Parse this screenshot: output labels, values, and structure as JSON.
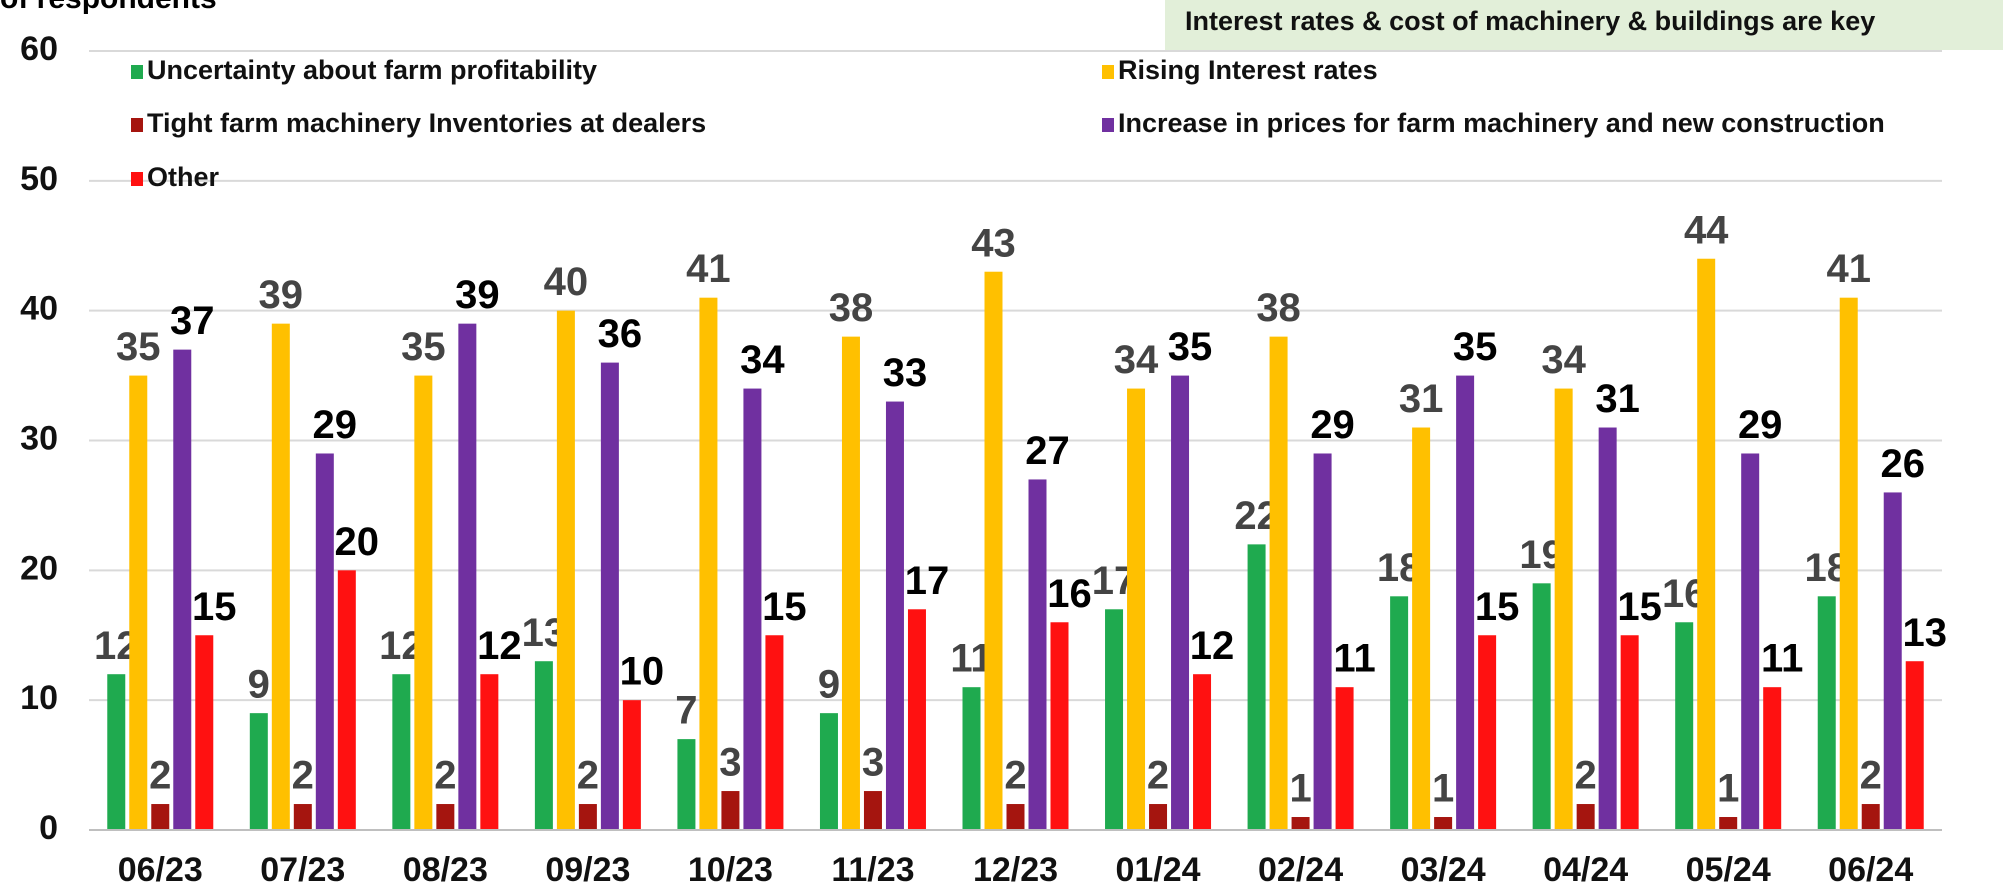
{
  "chart_data": {
    "type": "bar",
    "y_label": "of respondents",
    "annotation": "Interest rates & cost of machinery & buildings are  key",
    "categories": [
      "06/23",
      "07/23",
      "08/23",
      "09/23",
      "10/23",
      "11/23",
      "12/23",
      "01/24",
      "02/24",
      "03/24",
      "04/24",
      "05/24",
      "06/24"
    ],
    "series": [
      {
        "name": "Uncertainty about farm profitability",
        "color": "#1faa4f",
        "label_color": "#444444",
        "values": [
          12,
          9,
          12,
          13,
          7,
          9,
          11,
          17,
          22,
          18,
          19,
          16,
          18
        ]
      },
      {
        "name": "Rising Interest rates",
        "color": "#ffc000",
        "label_color": "#444444",
        "values": [
          35,
          39,
          35,
          40,
          41,
          38,
          43,
          34,
          38,
          31,
          34,
          44,
          41
        ]
      },
      {
        "name": "Tight farm machinery Inventories at dealers",
        "color": "#a5150f",
        "label_color": "#444444",
        "values": [
          2,
          2,
          2,
          2,
          3,
          3,
          2,
          2,
          1,
          1,
          2,
          1,
          2
        ]
      },
      {
        "name": "Increase in prices for farm machinery and new construction",
        "color": "#7030a0",
        "label_color": "#000000",
        "values": [
          37,
          29,
          39,
          36,
          34,
          33,
          27,
          35,
          29,
          35,
          31,
          29,
          26
        ]
      },
      {
        "name": "Other",
        "color": "#ff1111",
        "label_color": "#000000",
        "values": [
          15,
          20,
          12,
          10,
          15,
          17,
          16,
          12,
          11,
          15,
          15,
          11,
          13
        ]
      }
    ],
    "ylim": [
      0,
      60
    ],
    "yticks": [
      0,
      10,
      20,
      30,
      40,
      50,
      60
    ],
    "grid": true
  }
}
